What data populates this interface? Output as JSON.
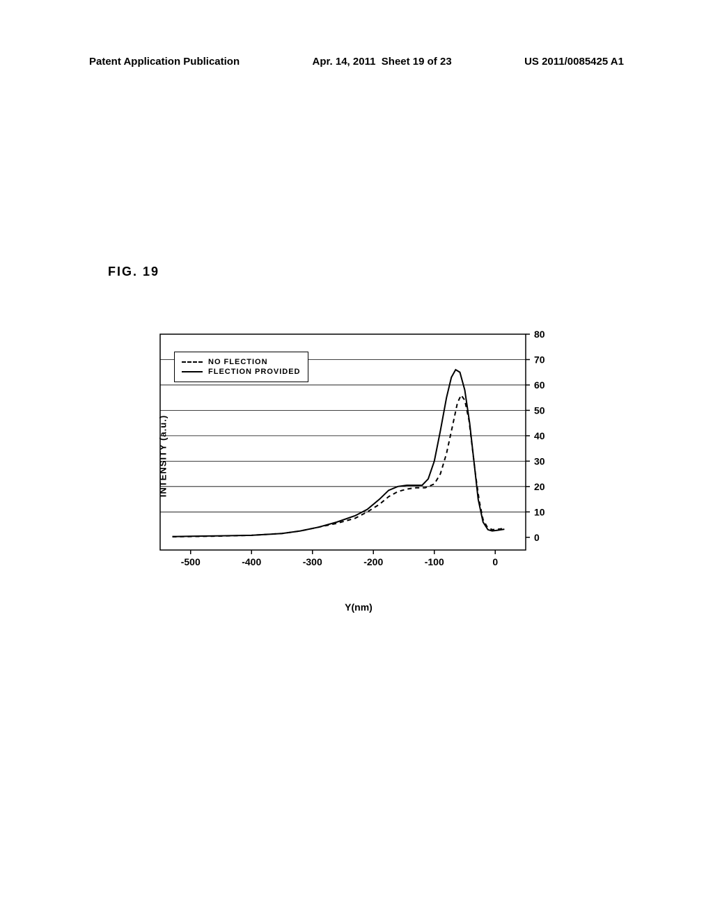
{
  "header": {
    "pub_type": "Patent Application Publication",
    "date": "Apr. 14, 2011",
    "sheet": "Sheet 19 of 23",
    "pub_number": "US 2011/0085425 A1"
  },
  "figure_label": "FIG. 19",
  "chart": {
    "type": "line",
    "xlabel": "Y(nm)",
    "ylabel": "INTENSITY (a.u.)",
    "xlim": [
      -550,
      50
    ],
    "ylim": [
      -5,
      80
    ],
    "xticks": [
      -500,
      -400,
      -300,
      -200,
      -100,
      0
    ],
    "yticks": [
      0,
      10,
      20,
      30,
      40,
      50,
      60,
      70,
      80
    ],
    "gridlines_y": [
      10,
      20,
      30,
      40,
      50,
      60,
      70
    ],
    "background_color": "#ffffff",
    "grid_color": "#000000",
    "border_color": "#000000",
    "legend": {
      "items": [
        {
          "label": "NO FLECTION",
          "style": "dashed"
        },
        {
          "label": "FLECTION PROVIDED",
          "style": "solid"
        }
      ]
    },
    "series": [
      {
        "name": "flection_provided",
        "style": "solid",
        "color": "#000000",
        "line_width": 2,
        "data": [
          {
            "x": -530,
            "y": 0.3
          },
          {
            "x": -500,
            "y": 0.4
          },
          {
            "x": -450,
            "y": 0.6
          },
          {
            "x": -400,
            "y": 0.8
          },
          {
            "x": -350,
            "y": 1.5
          },
          {
            "x": -320,
            "y": 2.5
          },
          {
            "x": -290,
            "y": 4
          },
          {
            "x": -260,
            "y": 6
          },
          {
            "x": -230,
            "y": 8.5
          },
          {
            "x": -210,
            "y": 11
          },
          {
            "x": -190,
            "y": 15
          },
          {
            "x": -175,
            "y": 18.5
          },
          {
            "x": -160,
            "y": 20
          },
          {
            "x": -145,
            "y": 20.5
          },
          {
            "x": -130,
            "y": 20.5
          },
          {
            "x": -120,
            "y": 20.5
          },
          {
            "x": -110,
            "y": 23
          },
          {
            "x": -100,
            "y": 30
          },
          {
            "x": -90,
            "y": 42
          },
          {
            "x": -80,
            "y": 55
          },
          {
            "x": -72,
            "y": 63
          },
          {
            "x": -65,
            "y": 66
          },
          {
            "x": -58,
            "y": 65
          },
          {
            "x": -50,
            "y": 58
          },
          {
            "x": -42,
            "y": 45
          },
          {
            "x": -35,
            "y": 30
          },
          {
            "x": -28,
            "y": 15
          },
          {
            "x": -20,
            "y": 6
          },
          {
            "x": -12,
            "y": 3
          },
          {
            "x": -5,
            "y": 2.5
          },
          {
            "x": 5,
            "y": 2.8
          },
          {
            "x": 15,
            "y": 3.2
          }
        ]
      },
      {
        "name": "no_flection",
        "style": "dashed",
        "color": "#000000",
        "line_width": 2,
        "data": [
          {
            "x": -530,
            "y": 0.2
          },
          {
            "x": -500,
            "y": 0.3
          },
          {
            "x": -450,
            "y": 0.5
          },
          {
            "x": -400,
            "y": 0.8
          },
          {
            "x": -350,
            "y": 1.5
          },
          {
            "x": -320,
            "y": 2.5
          },
          {
            "x": -290,
            "y": 4
          },
          {
            "x": -260,
            "y": 5.5
          },
          {
            "x": -230,
            "y": 7.5
          },
          {
            "x": -210,
            "y": 10
          },
          {
            "x": -190,
            "y": 13
          },
          {
            "x": -175,
            "y": 16
          },
          {
            "x": -160,
            "y": 18
          },
          {
            "x": -145,
            "y": 19
          },
          {
            "x": -130,
            "y": 19.5
          },
          {
            "x": -115,
            "y": 19.5
          },
          {
            "x": -100,
            "y": 21
          },
          {
            "x": -90,
            "y": 25
          },
          {
            "x": -80,
            "y": 33
          },
          {
            "x": -70,
            "y": 44
          },
          {
            "x": -62,
            "y": 53
          },
          {
            "x": -56,
            "y": 56
          },
          {
            "x": -50,
            "y": 54
          },
          {
            "x": -43,
            "y": 46
          },
          {
            "x": -38,
            "y": 36
          },
          {
            "x": -32,
            "y": 24
          },
          {
            "x": -26,
            "y": 14
          },
          {
            "x": -20,
            "y": 7
          },
          {
            "x": -13,
            "y": 4
          },
          {
            "x": -5,
            "y": 3
          },
          {
            "x": 5,
            "y": 3.2
          },
          {
            "x": 15,
            "y": 3.5
          }
        ]
      }
    ]
  }
}
